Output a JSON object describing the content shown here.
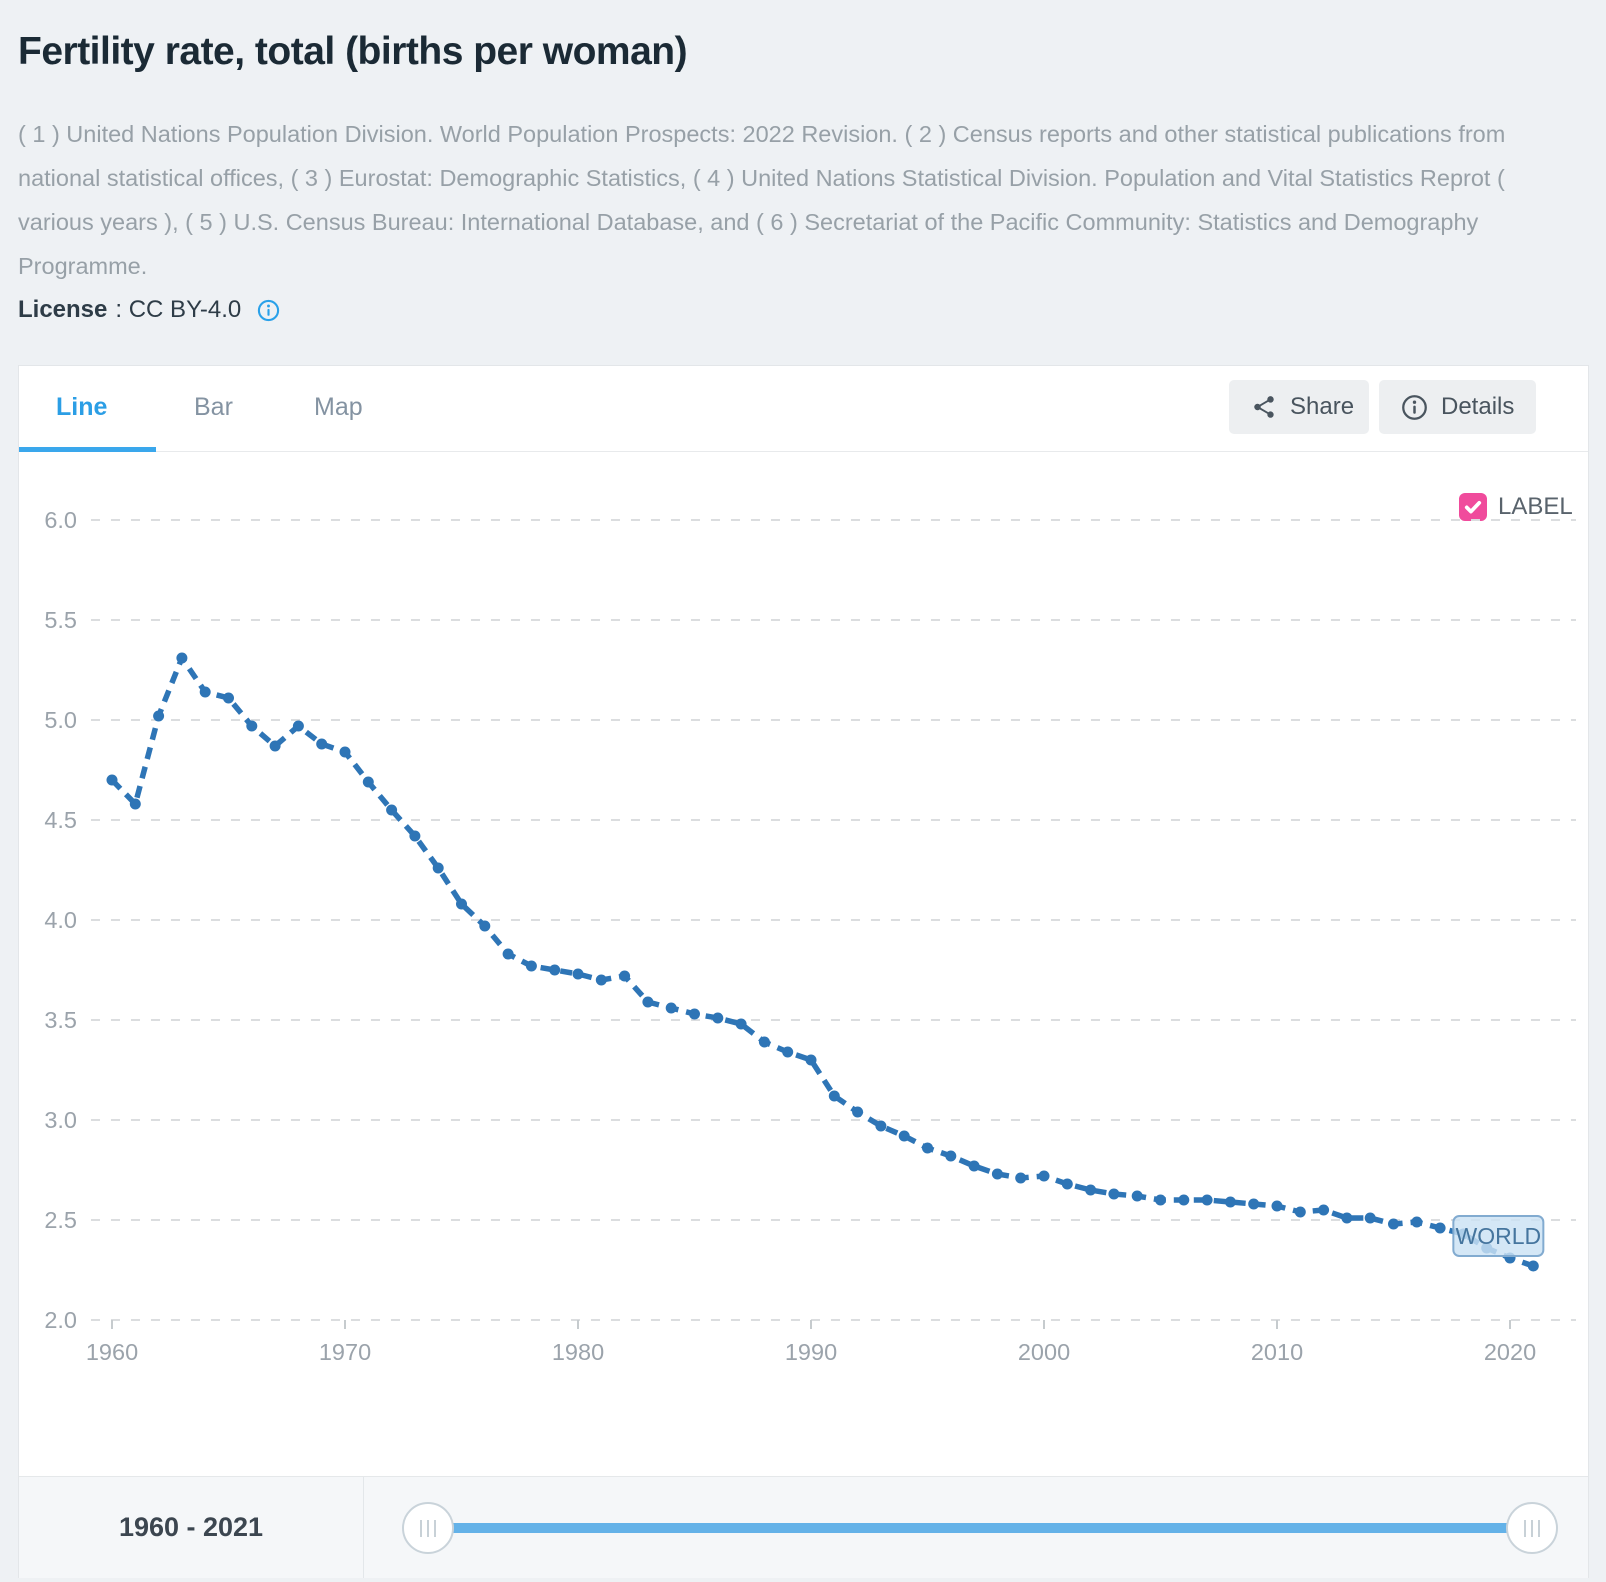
{
  "header": {
    "title": "Fertility rate, total (births per woman)",
    "source": "( 1 ) United Nations Population Division. World Population Prospects: 2022 Revision. ( 2 ) Census reports and other statistical publications from national statistical offices, ( 3 ) Eurostat: Demographic Statistics, ( 4 ) United Nations Statistical Division. Population and Vital Statistics Reprot ( various years ), ( 5 ) U.S. Census Bureau: International Database, and ( 6 ) Secretariat of the Pacific Community: Statistics and Demography Programme.",
    "license_label": "License",
    "license_value": ": CC BY-4.0"
  },
  "tabs": [
    {
      "label": "Line",
      "active": true
    },
    {
      "label": "Bar",
      "active": false
    },
    {
      "label": "Map",
      "active": false
    }
  ],
  "toolbar": {
    "share_label": "Share",
    "details_label": "Details"
  },
  "legend": {
    "label": "LABEL",
    "checked": true,
    "color": "#f04b9c"
  },
  "range": {
    "start": "1960",
    "end": "2021",
    "display": "1960 - 2021"
  },
  "chart_data": {
    "type": "line",
    "title": "Fertility rate, total (births per woman)",
    "xlabel": "",
    "ylabel": "",
    "ylim": [
      2.0,
      6.0
    ],
    "yticks": [
      2.0,
      2.5,
      3.0,
      3.5,
      4.0,
      4.5,
      5.0,
      5.5,
      6.0
    ],
    "xticks": [
      1960,
      1970,
      1980,
      1990,
      2000,
      2010,
      2020
    ],
    "grid": "horizontal-dashed",
    "legend_position": "top-right",
    "line_color": "#2e75b6",
    "grid_color": "#dbdddf",
    "axis_color": "#9ba3ab",
    "tick_color": "#c6cbce",
    "x": [
      1960,
      1961,
      1962,
      1963,
      1964,
      1965,
      1966,
      1967,
      1968,
      1969,
      1970,
      1971,
      1972,
      1973,
      1974,
      1975,
      1976,
      1977,
      1978,
      1979,
      1980,
      1981,
      1982,
      1983,
      1984,
      1985,
      1986,
      1987,
      1988,
      1989,
      1990,
      1991,
      1992,
      1993,
      1994,
      1995,
      1996,
      1997,
      1998,
      1999,
      2000,
      2001,
      2002,
      2003,
      2004,
      2005,
      2006,
      2007,
      2008,
      2009,
      2010,
      2011,
      2012,
      2013,
      2014,
      2015,
      2016,
      2017,
      2018,
      2019,
      2020,
      2021
    ],
    "series": [
      {
        "name": "WORLD",
        "values": [
          4.7,
          4.58,
          5.02,
          5.31,
          5.14,
          5.11,
          4.97,
          4.87,
          4.97,
          4.88,
          4.84,
          4.69,
          4.55,
          4.42,
          4.26,
          4.08,
          3.97,
          3.83,
          3.77,
          3.75,
          3.73,
          3.7,
          3.72,
          3.59,
          3.56,
          3.53,
          3.51,
          3.48,
          3.39,
          3.34,
          3.3,
          3.12,
          3.04,
          2.97,
          2.92,
          2.86,
          2.82,
          2.77,
          2.73,
          2.71,
          2.72,
          2.68,
          2.65,
          2.63,
          2.62,
          2.6,
          2.6,
          2.6,
          2.59,
          2.58,
          2.57,
          2.54,
          2.55,
          2.51,
          2.51,
          2.48,
          2.49,
          2.46,
          2.43,
          2.36,
          2.31,
          2.27
        ]
      }
    ],
    "annotation": {
      "text": "WORLD",
      "x": 2019.5,
      "y": 2.42,
      "bg": "rgba(203,226,244,0.82)",
      "border": "#82abd0",
      "color": "#45759e"
    }
  }
}
